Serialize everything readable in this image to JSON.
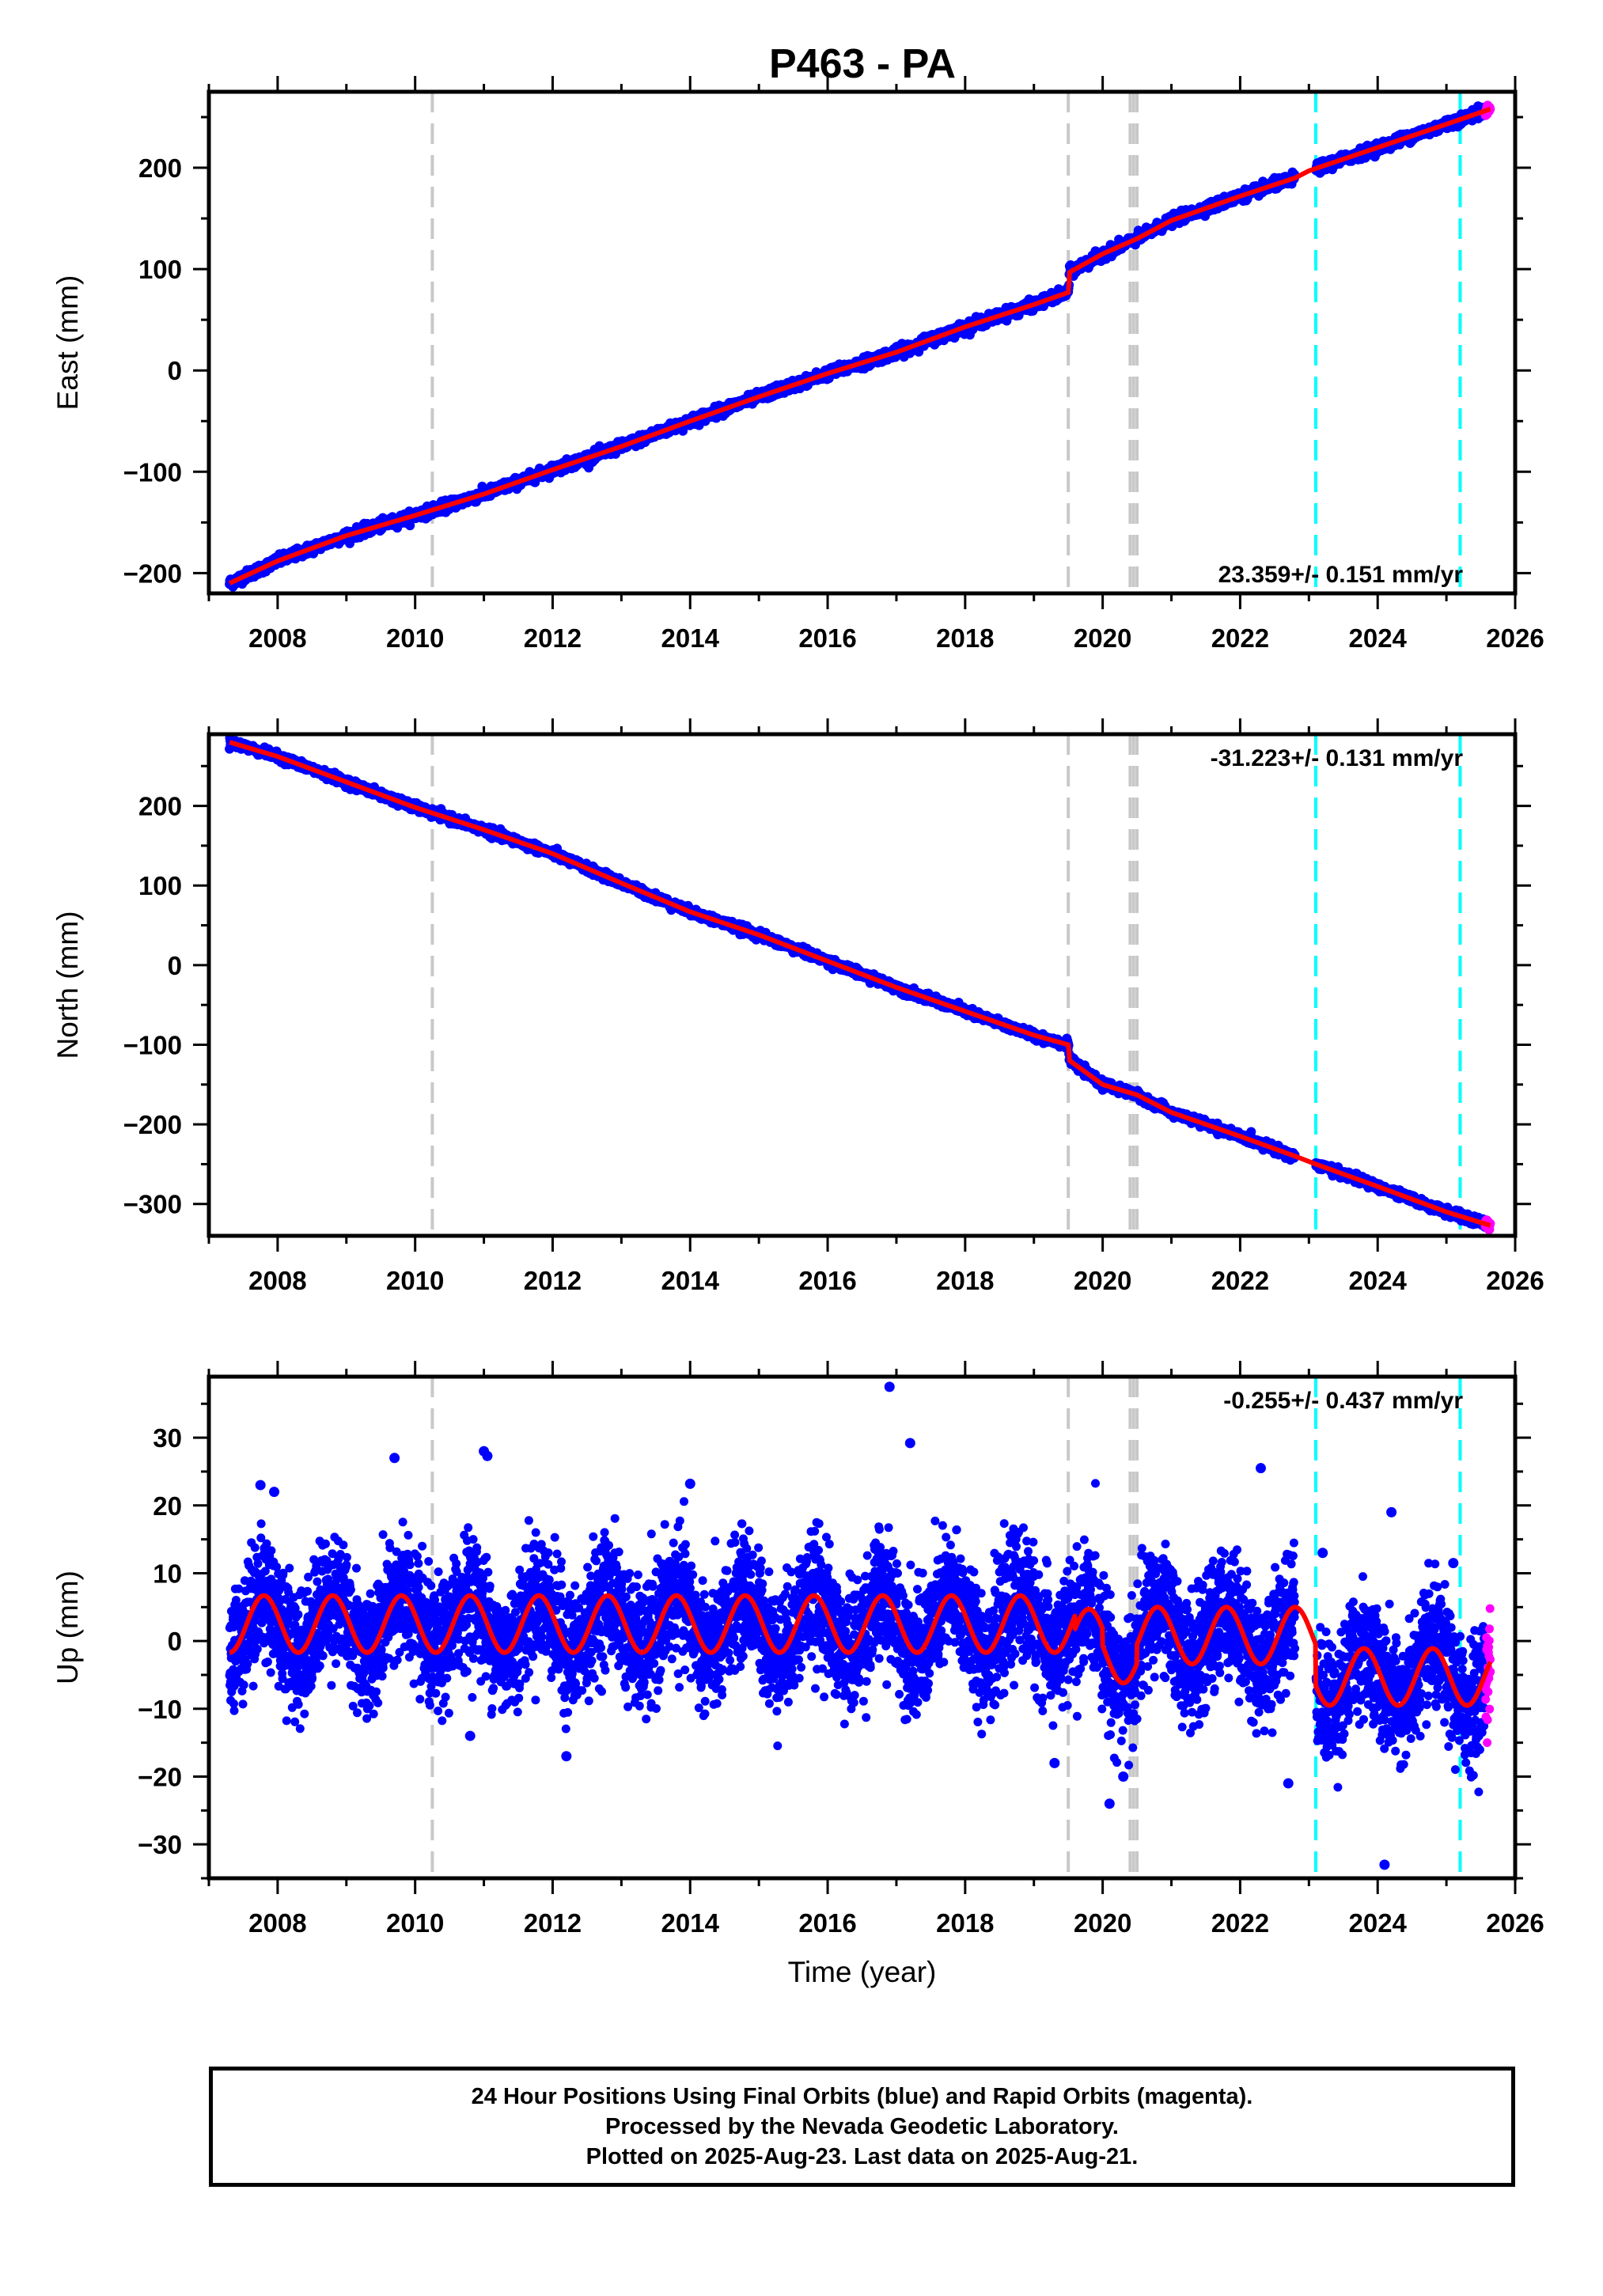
{
  "figure": {
    "title": "P463 - PA",
    "footer_lines": [
      "24 Hour Positions Using Final Orbits (blue) and Rapid Orbits (magenta).",
      "Processed by the Nevada Geodetic Laboratory.",
      "Plotted on 2025-Aug-23. Last data on 2025-Aug-21."
    ],
    "colors": {
      "final": "#0000ff",
      "rapid": "#ff00ff",
      "model": "#ff0000",
      "gray_event": "#c8c8c8",
      "cyan_event": "#00ffff"
    }
  },
  "chart_data": [
    {
      "type": "scatter",
      "panel": "east",
      "ylabel": "East (mm)",
      "xlim": [
        2007.0,
        2026.0
      ],
      "ylim": [
        -220,
        275
      ],
      "x_ticks": [
        2008,
        2010,
        2012,
        2014,
        2016,
        2018,
        2020,
        2022,
        2024,
        2026
      ],
      "y_ticks": [
        -200,
        -100,
        0,
        100,
        200
      ],
      "y_tick_labels": [
        "−200",
        "−100",
        "0",
        "100",
        "200"
      ],
      "rate_label": "23.359+/- 0.151 mm/yr",
      "rate_position": "bottom-right",
      "data_start": 2007.3,
      "data_end": 2025.64,
      "gap": [
        2022.8,
        2023.1
      ],
      "rapid_start": 2025.57,
      "fit_points": [
        [
          2007.3,
          -210
        ],
        [
          2008.0,
          -188
        ],
        [
          2009.0,
          -163
        ],
        [
          2010.0,
          -143
        ],
        [
          2011.0,
          -122
        ],
        [
          2012.0,
          -98
        ],
        [
          2013.0,
          -75
        ],
        [
          2014.0,
          -50
        ],
        [
          2015.0,
          -26
        ],
        [
          2016.0,
          -3
        ],
        [
          2017.0,
          18
        ],
        [
          2018.0,
          43
        ],
        [
          2019.0,
          65
        ],
        [
          2019.5,
          77
        ],
        [
          2019.52,
          97
        ],
        [
          2020.0,
          115
        ],
        [
          2020.5,
          130
        ],
        [
          2021.0,
          148
        ],
        [
          2022.0,
          172
        ],
        [
          2022.8,
          190
        ],
        [
          2023.0,
          197
        ],
        [
          2024.0,
          220
        ],
        [
          2025.0,
          243
        ],
        [
          2025.64,
          258
        ]
      ],
      "scatter_sigma": 2.5,
      "event_lines": [
        {
          "x": 2010.25,
          "kind": "gray"
        },
        {
          "x": 2019.5,
          "kind": "gray"
        },
        {
          "x": 2020.4,
          "kind": "gray"
        },
        {
          "x": 2020.45,
          "kind": "gray"
        },
        {
          "x": 2020.5,
          "kind": "gray"
        },
        {
          "x": 2023.1,
          "kind": "cyan"
        },
        {
          "x": 2025.2,
          "kind": "cyan"
        }
      ]
    },
    {
      "type": "scatter",
      "panel": "north",
      "ylabel": "North (mm)",
      "xlim": [
        2007.0,
        2026.0
      ],
      "ylim": [
        -340,
        290
      ],
      "x_ticks": [
        2008,
        2010,
        2012,
        2014,
        2016,
        2018,
        2020,
        2022,
        2024,
        2026
      ],
      "y_ticks": [
        -300,
        -200,
        -100,
        0,
        100,
        200
      ],
      "y_tick_labels": [
        "−300",
        "−200",
        "−100",
        "0",
        "100",
        "200"
      ],
      "rate_label": "-31.223+/- 0.131 mm/yr",
      "rate_position": "top-right",
      "data_start": 2007.3,
      "data_end": 2025.64,
      "gap": [
        2022.8,
        2023.1
      ],
      "rapid_start": 2025.57,
      "fit_points": [
        [
          2007.3,
          280
        ],
        [
          2008.0,
          262
        ],
        [
          2009.0,
          230
        ],
        [
          2010.0,
          198
        ],
        [
          2011.0,
          170
        ],
        [
          2012.0,
          140
        ],
        [
          2013.0,
          103
        ],
        [
          2014.0,
          67
        ],
        [
          2015.0,
          38
        ],
        [
          2016.0,
          5
        ],
        [
          2017.0,
          -28
        ],
        [
          2018.0,
          -58
        ],
        [
          2019.0,
          -88
        ],
        [
          2019.5,
          -100
        ],
        [
          2019.52,
          -120
        ],
        [
          2020.0,
          -150
        ],
        [
          2020.5,
          -163
        ],
        [
          2021.0,
          -185
        ],
        [
          2022.0,
          -215
        ],
        [
          2022.8,
          -240
        ],
        [
          2023.1,
          -250
        ],
        [
          2024.0,
          -278
        ],
        [
          2025.0,
          -310
        ],
        [
          2025.64,
          -327
        ]
      ],
      "scatter_sigma": 2.5,
      "event_lines": [
        {
          "x": 2010.25,
          "kind": "gray"
        },
        {
          "x": 2019.5,
          "kind": "gray"
        },
        {
          "x": 2020.4,
          "kind": "gray"
        },
        {
          "x": 2020.45,
          "kind": "gray"
        },
        {
          "x": 2020.5,
          "kind": "gray"
        },
        {
          "x": 2023.1,
          "kind": "cyan"
        },
        {
          "x": 2025.2,
          "kind": "cyan"
        }
      ]
    },
    {
      "type": "scatter",
      "panel": "up",
      "ylabel": "Up (mm)",
      "xlabel": "Time (year)",
      "xlim": [
        2007.0,
        2026.0
      ],
      "ylim": [
        -35,
        39
      ],
      "x_ticks": [
        2008,
        2010,
        2012,
        2014,
        2016,
        2018,
        2020,
        2022,
        2024,
        2026
      ],
      "y_ticks": [
        -30,
        -20,
        -10,
        0,
        10,
        20,
        30
      ],
      "y_tick_labels": [
        "−30",
        "−20",
        "−10",
        "0",
        "10",
        "20",
        "30"
      ],
      "rate_label": "-0.255+/- 0.437 mm/yr",
      "rate_position": "top-right",
      "data_start": 2007.3,
      "data_end": 2025.64,
      "gap": [
        2022.8,
        2023.1
      ],
      "rapid_start": 2025.57,
      "seasonal": {
        "amplitude": 4.2,
        "phase_year": 2007.55,
        "offsets": [
          [
            2007.3,
            2.5
          ],
          [
            2019.6,
            0.5
          ],
          [
            2020.0,
            -2.0
          ],
          [
            2020.5,
            0.8
          ],
          [
            2023.1,
            -5.3
          ]
        ]
      },
      "scatter_sigma": 4.5,
      "outliers": [
        [
          2016.9,
          37.5
        ],
        [
          2017.2,
          29.2
        ],
        [
          2009.7,
          27
        ],
        [
          2011.0,
          28
        ],
        [
          2011.05,
          27.3
        ],
        [
          2022.3,
          25.5
        ],
        [
          2007.75,
          23
        ],
        [
          2007.95,
          22
        ],
        [
          2014.0,
          23.2
        ],
        [
          2023.2,
          13
        ],
        [
          2012.2,
          -17
        ],
        [
          2020.1,
          -24
        ],
        [
          2020.3,
          -20
        ],
        [
          2022.7,
          -21
        ],
        [
          2024.1,
          -33
        ],
        [
          2024.2,
          19
        ],
        [
          2025.1,
          11.5
        ],
        [
          2019.3,
          -18
        ],
        [
          2010.8,
          -14
        ]
      ],
      "event_lines": [
        {
          "x": 2010.25,
          "kind": "gray"
        },
        {
          "x": 2019.5,
          "kind": "gray"
        },
        {
          "x": 2020.4,
          "kind": "gray"
        },
        {
          "x": 2020.45,
          "kind": "gray"
        },
        {
          "x": 2020.5,
          "kind": "gray"
        },
        {
          "x": 2023.1,
          "kind": "cyan"
        },
        {
          "x": 2025.2,
          "kind": "cyan"
        }
      ]
    }
  ]
}
